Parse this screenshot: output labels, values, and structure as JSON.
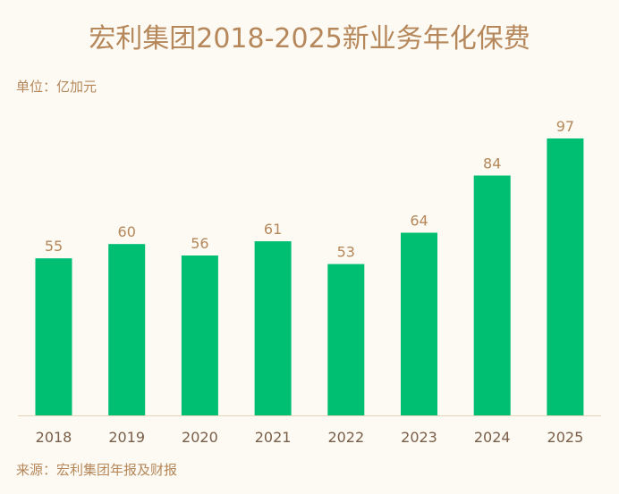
{
  "title": "宏利集团2018-2025新业务年化保费",
  "unit_label": "单位：亿加元",
  "source_label": "来源：宏利集团年报及财报",
  "colors": {
    "background": "#fcfaf3",
    "bar": "#00bf73",
    "text": "#b5875a",
    "axis": "#e6d3b8"
  },
  "chart_data": {
    "type": "bar",
    "categories": [
      "2018",
      "2019",
      "2020",
      "2021",
      "2022",
      "2023",
      "2024",
      "2025"
    ],
    "values": [
      55,
      60,
      56,
      61,
      53,
      64,
      84,
      97
    ],
    "ylim": [
      0,
      100
    ],
    "grid": false,
    "legend": "none"
  }
}
